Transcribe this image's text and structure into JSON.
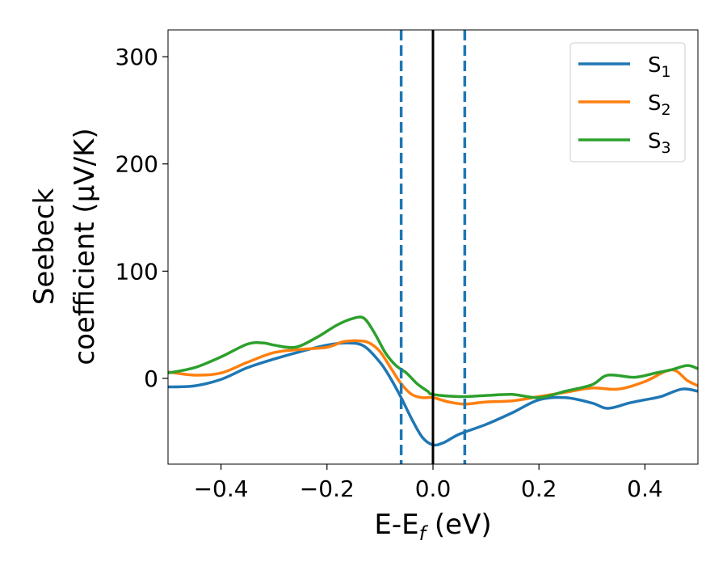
{
  "chart_data": {
    "type": "line",
    "xlabel": "E-E",
    "xlabel_sub": "f",
    "xlabel_unit": " (eV)",
    "ylabel_line1": "Seebeck",
    "ylabel_line2": "coefficient  (μV/K)",
    "xlim": [
      -0.5,
      0.5
    ],
    "ylim": [
      -80,
      325
    ],
    "xticks": [
      -0.4,
      -0.2,
      0.0,
      0.2,
      0.4
    ],
    "xtick_labels": [
      "−0.4",
      "−0.2",
      "0.0",
      "0.2",
      "0.4"
    ],
    "yticks": [
      0,
      100,
      200,
      300
    ],
    "ytick_labels": [
      "0",
      "100",
      "200",
      "300"
    ],
    "grid": false,
    "legend_position": "top-right",
    "vlines": [
      {
        "x": -0.06,
        "style": "dashed",
        "color": "#1f77b4"
      },
      {
        "x": 0.0,
        "style": "solid",
        "color": "#000000"
      },
      {
        "x": 0.06,
        "style": "dashed",
        "color": "#1f77b4"
      }
    ],
    "series": [
      {
        "name": "S",
        "sub": "1",
        "color": "#1f77b4",
        "x": [
          -0.5,
          -0.45,
          -0.4,
          -0.35,
          -0.3,
          -0.25,
          -0.2,
          -0.16,
          -0.13,
          -0.1,
          -0.08,
          -0.06,
          -0.04,
          -0.02,
          0.0,
          0.02,
          0.05,
          0.1,
          0.15,
          0.2,
          0.25,
          0.3,
          0.33,
          0.37,
          0.4,
          0.43,
          0.47,
          0.5
        ],
        "y": [
          -8,
          -7,
          -1,
          10,
          18,
          25,
          31,
          33,
          30,
          15,
          0,
          -18,
          -38,
          -55,
          -62,
          -60,
          -52,
          -43,
          -32,
          -20,
          -18,
          -23,
          -28,
          -23,
          -20,
          -17,
          -10,
          -12
        ]
      },
      {
        "name": "S",
        "sub": "2",
        "color": "#ff7f0e",
        "x": [
          -0.5,
          -0.45,
          -0.4,
          -0.35,
          -0.3,
          -0.25,
          -0.2,
          -0.17,
          -0.14,
          -0.12,
          -0.1,
          -0.08,
          -0.06,
          -0.04,
          -0.02,
          0.0,
          0.03,
          0.06,
          0.1,
          0.15,
          0.2,
          0.25,
          0.3,
          0.35,
          0.4,
          0.45,
          0.48,
          0.5
        ],
        "y": [
          6,
          3,
          5,
          15,
          24,
          27,
          29,
          34,
          35,
          33,
          25,
          10,
          -5,
          -15,
          -18,
          -18,
          -22,
          -24,
          -22,
          -21,
          -17,
          -13,
          -9,
          -10,
          -3,
          8,
          -2,
          -7
        ]
      },
      {
        "name": "S",
        "sub": "3",
        "color": "#2ca02c",
        "x": [
          -0.5,
          -0.45,
          -0.4,
          -0.35,
          -0.32,
          -0.3,
          -0.26,
          -0.22,
          -0.18,
          -0.15,
          -0.13,
          -0.11,
          -0.09,
          -0.07,
          -0.05,
          -0.03,
          -0.01,
          0.0,
          0.05,
          0.1,
          0.15,
          0.2,
          0.25,
          0.3,
          0.33,
          0.38,
          0.42,
          0.45,
          0.48,
          0.5
        ],
        "y": [
          5,
          10,
          20,
          32,
          33,
          31,
          29,
          38,
          50,
          56,
          56,
          42,
          24,
          12,
          5,
          -5,
          -12,
          -15,
          -17,
          -16,
          -15,
          -18,
          -12,
          -6,
          3,
          1,
          5,
          8,
          12,
          9
        ]
      }
    ]
  }
}
